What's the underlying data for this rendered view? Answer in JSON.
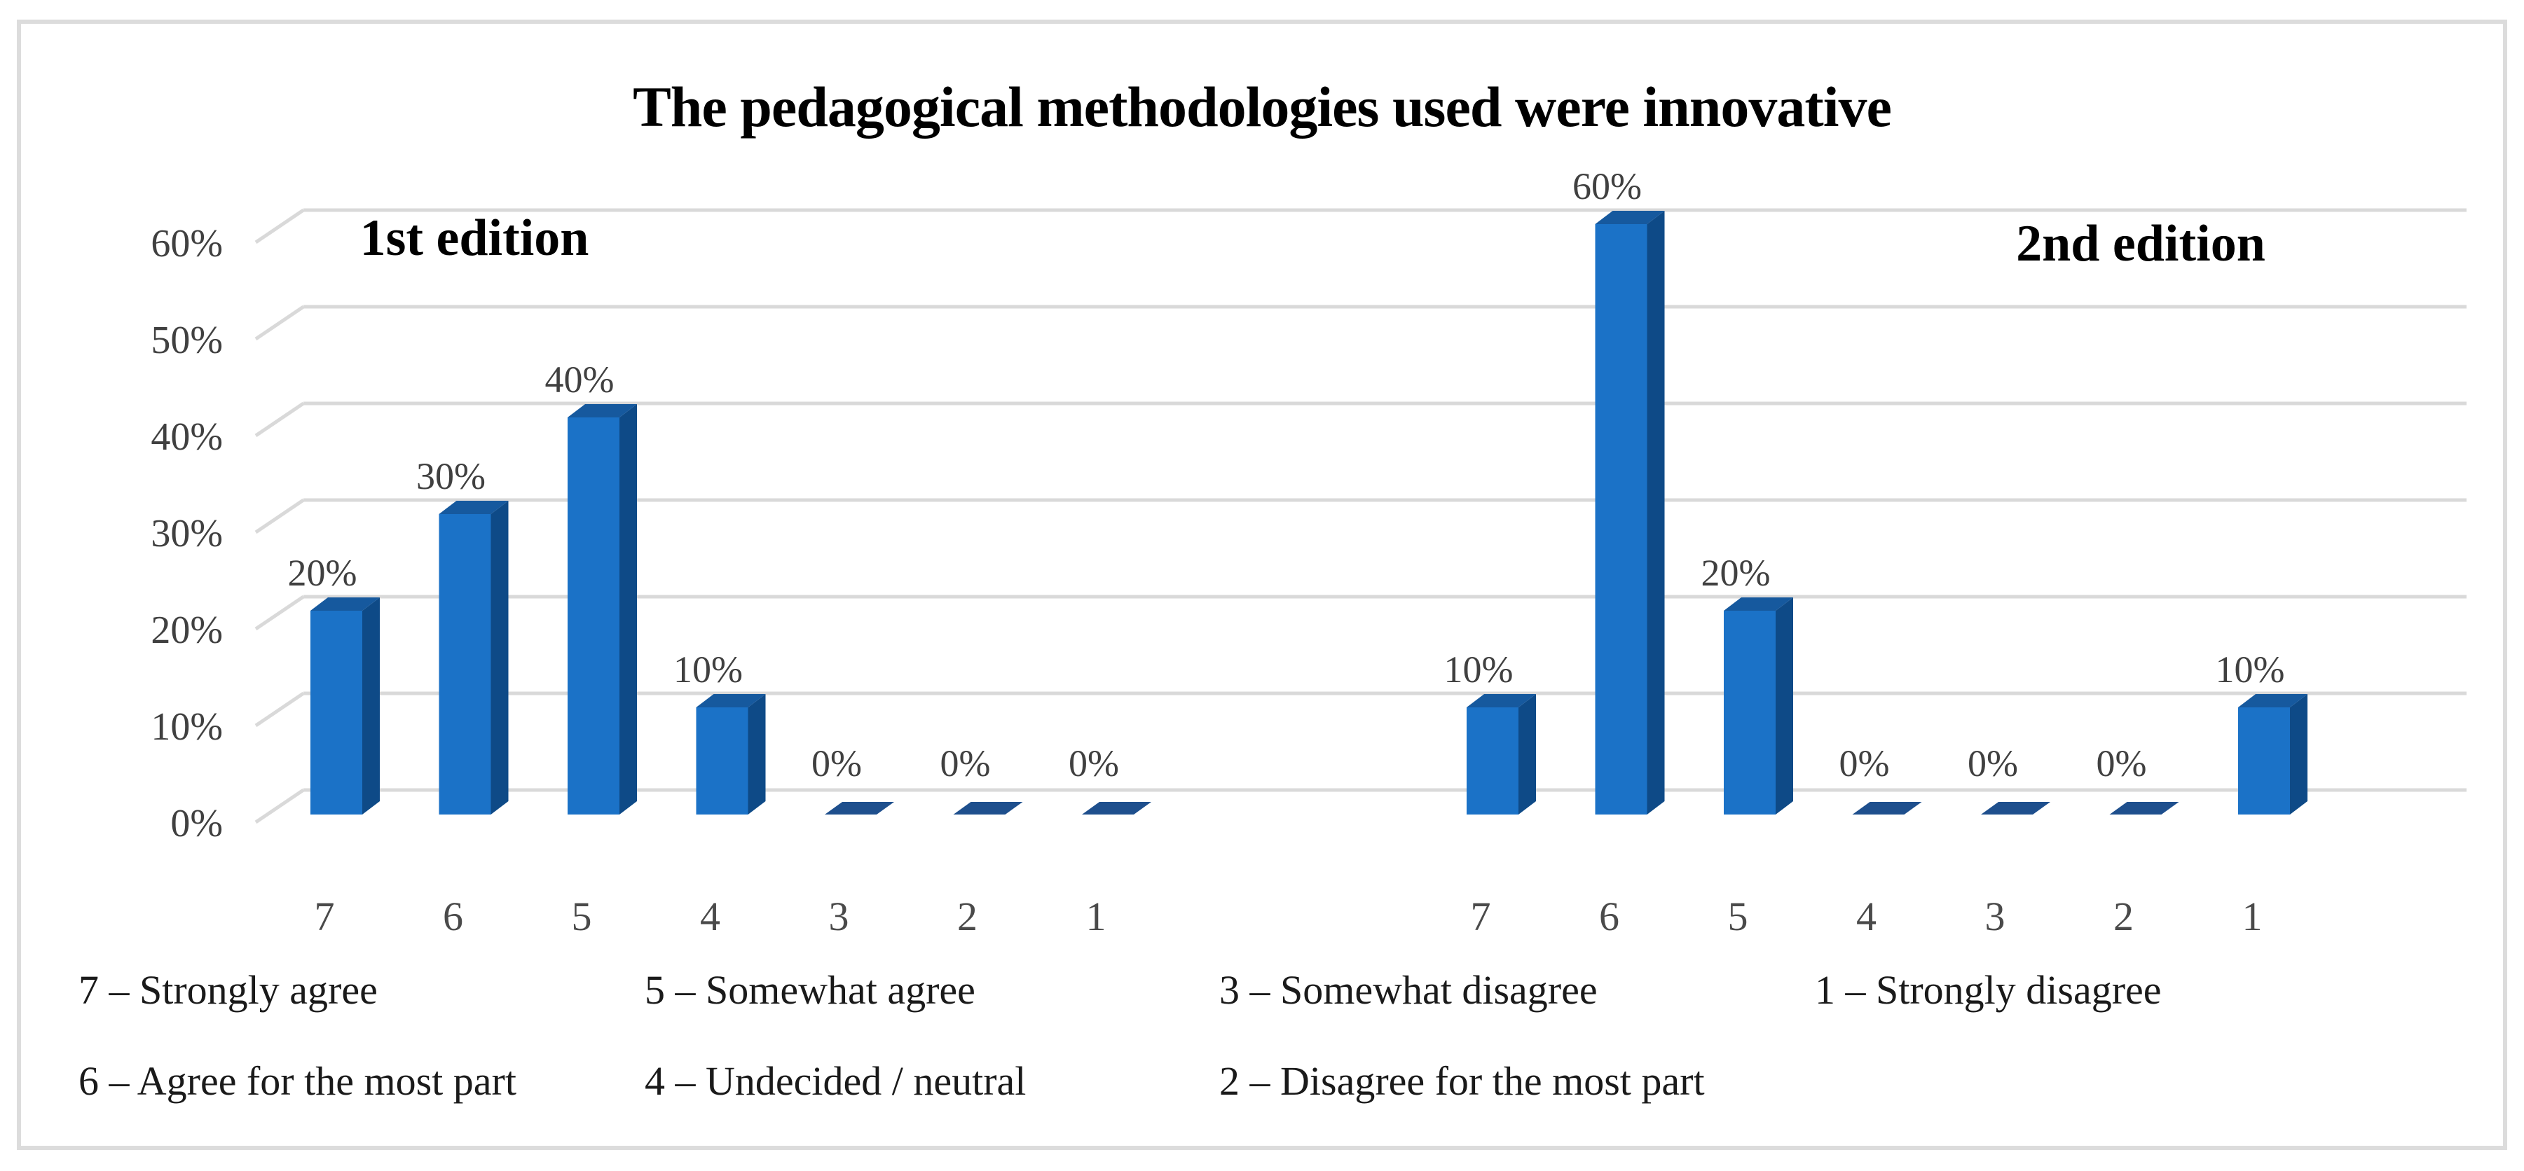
{
  "title": "The pedagogical methodologies used were innovative",
  "chart_data": {
    "type": "bar",
    "title": "The pedagogical methodologies used were innovative",
    "xlabel": "",
    "ylabel": "",
    "ylim": [
      0,
      60
    ],
    "yticks": [
      "0%",
      "10%",
      "20%",
      "30%",
      "40%",
      "50%",
      "60%"
    ],
    "grid": true,
    "style": "3d-bars",
    "value_suffix": "%",
    "groups": [
      {
        "label": "1st edition",
        "categories": [
          "7",
          "6",
          "5",
          "4",
          "3",
          "2",
          "1"
        ],
        "values": [
          20,
          30,
          40,
          10,
          0,
          0,
          0
        ]
      },
      {
        "label": "2nd edition",
        "categories": [
          "7",
          "6",
          "5",
          "4",
          "3",
          "2",
          "1"
        ],
        "values": [
          10,
          60,
          20,
          0,
          0,
          0,
          10
        ]
      }
    ]
  },
  "legend": {
    "items": [
      "7 – Strongly agree",
      "5 – Somewhat agree",
      "3 – Somewhat disagree",
      "1 – Strongly disagree",
      "6 – Agree for the most part",
      "4 – Undecided / neutral",
      "2 – Disagree for the most part"
    ]
  },
  "colors": {
    "bar_front": "#1B72C7",
    "bar_side": "#0E4A87",
    "bar_top": "#16599E",
    "bar_zero": "#1E4F8D",
    "gridline": "#D9D9D9",
    "axis_text": "#404040",
    "category_text": "#4a4a4a",
    "data_label_text": "#404040",
    "border": "#DCDCDC"
  }
}
